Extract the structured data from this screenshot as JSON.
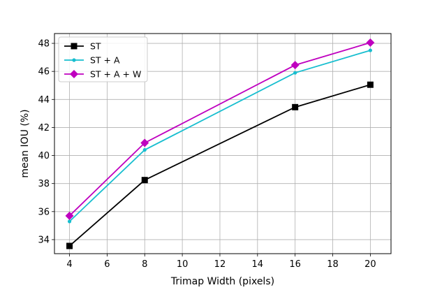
{
  "chart_data": {
    "type": "line",
    "xlabel": "Trimap Width (pixels)",
    "ylabel": "mean IOU (%)",
    "xlim": [
      3.2,
      21.1
    ],
    "ylim": [
      33.0,
      48.7
    ],
    "xticks": [
      4,
      6,
      8,
      10,
      12,
      14,
      16,
      18,
      20
    ],
    "yticks": [
      34,
      36,
      38,
      40,
      42,
      44,
      46,
      48
    ],
    "grid": true,
    "legend_position": "top-left",
    "x": [
      4,
      8,
      16,
      20
    ],
    "series": [
      {
        "name": "ST",
        "values": [
          33.55,
          38.25,
          43.45,
          45.05
        ],
        "color": "#000000",
        "marker": "square"
      },
      {
        "name": "ST + A",
        "values": [
          35.3,
          40.4,
          45.9,
          47.5
        ],
        "color": "#17becf",
        "marker": "circle"
      },
      {
        "name": "ST + A + W",
        "values": [
          35.7,
          40.9,
          46.45,
          48.05
        ],
        "color": "#bf00bf",
        "marker": "diamond"
      }
    ]
  }
}
